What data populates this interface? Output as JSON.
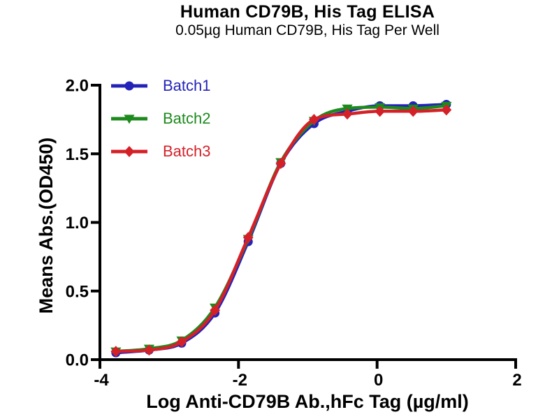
{
  "chart_data": {
    "type": "line",
    "title": "Human CD79B, His Tag ELISA",
    "subtitle": "0.05µg Human CD79B, His Tag Per Well",
    "xlabel": "Log Anti-CD79B Ab.,hFc Tag (µg/ml)",
    "ylabel": "Means Abs.(OD450)",
    "xlim": [
      -4,
      2
    ],
    "ylim": [
      0,
      2
    ],
    "xticks": [
      -4,
      -2,
      0,
      2
    ],
    "xtick_labels": [
      "-4",
      "-2",
      "0",
      "2"
    ],
    "yticks": [
      0,
      0.5,
      1.0,
      1.5,
      2.0
    ],
    "ytick_labels": [
      "0.0",
      "0.5",
      "1.0",
      "1.5",
      "2.0"
    ],
    "grid": false,
    "legend_position": "inside-top-left",
    "axis_color": "#000000",
    "x": [
      -3.77,
      -3.29,
      -2.82,
      -2.34,
      -1.86,
      -1.39,
      -0.91,
      -0.43,
      0.04,
      0.52,
      1.0
    ],
    "series": [
      {
        "name": "Batch1",
        "color": "#2323B9",
        "marker": "circle",
        "values": [
          0.05,
          0.07,
          0.12,
          0.34,
          0.86,
          1.43,
          1.72,
          1.81,
          1.85,
          1.85,
          1.86
        ]
      },
      {
        "name": "Batch2",
        "color": "#1D8A1D",
        "marker": "triangle-down",
        "values": [
          0.06,
          0.08,
          0.14,
          0.38,
          0.88,
          1.44,
          1.74,
          1.83,
          1.84,
          1.83,
          1.85
        ]
      },
      {
        "name": "Batch3",
        "color": "#D42128",
        "marker": "diamond",
        "values": [
          0.06,
          0.07,
          0.13,
          0.36,
          0.89,
          1.43,
          1.75,
          1.79,
          1.81,
          1.81,
          1.82
        ]
      }
    ]
  }
}
